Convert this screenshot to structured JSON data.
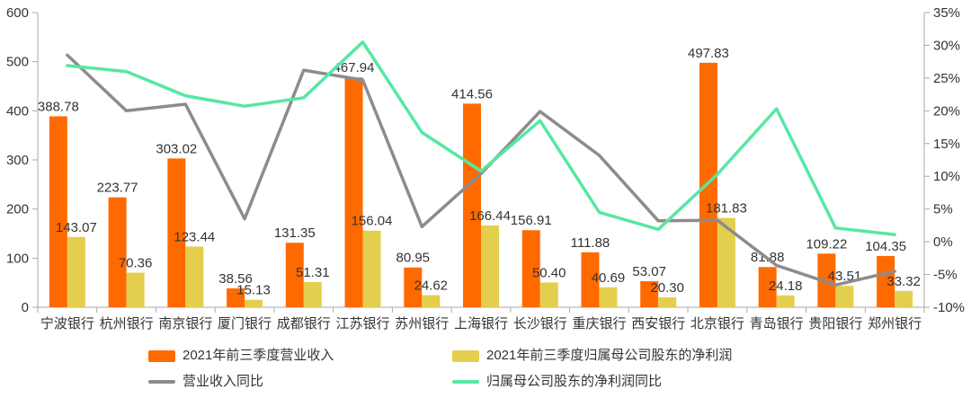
{
  "chart_data": {
    "type": "bar+line",
    "title": "",
    "xlabel": "",
    "ylabel_left": "",
    "ylabel_right": "",
    "grid": false,
    "legend_position": "bottom",
    "categories": [
      "宁波银行",
      "杭州银行",
      "南京银行",
      "厦门银行",
      "成都银行",
      "江苏银行",
      "苏州银行",
      "上海银行",
      "长沙银行",
      "重庆银行",
      "西安银行",
      "北京银行",
      "青岛银行",
      "贵阳银行",
      "郑州银行"
    ],
    "series": [
      {
        "name": "2021年前三季度营业收入",
        "type": "bar",
        "axis": "left",
        "color": "#FF6A00",
        "values": [
          "388.78",
          "223.77",
          "303.02",
          "38.56",
          "131.35",
          "467.94",
          "80.95",
          "414.56",
          "156.91",
          "111.88",
          "53.07",
          "497.83",
          "81.88",
          "109.22",
          "104.35"
        ]
      },
      {
        "name": "2021年前三季度归属母公司股东的净利润",
        "type": "bar",
        "axis": "left",
        "color": "#E4CE4E",
        "values": [
          "143.07",
          "70.36",
          "123.44",
          "15.13",
          "51.31",
          "156.04",
          "24.62",
          "166.44",
          "50.40",
          "40.69",
          "20.30",
          "181.83",
          "24.18",
          "43.51",
          "33.32"
        ]
      },
      {
        "name": "营业收入同比",
        "type": "line",
        "axis": "right",
        "color": "#8C8C8C",
        "values": [
          28.5,
          20.0,
          21.0,
          3.5,
          26.2,
          24.7,
          2.3,
          10.4,
          19.9,
          13.2,
          3.2,
          3.3,
          -3.6,
          -6.6,
          -4.5
        ]
      },
      {
        "name": "归属母公司股东的净利润同比",
        "type": "line",
        "axis": "right",
        "color": "#55E8A2",
        "values": [
          26.9,
          26.0,
          22.3,
          20.7,
          22.0,
          30.5,
          16.7,
          10.8,
          18.5,
          4.5,
          1.9,
          10.3,
          20.3,
          2.1,
          1.1
        ]
      }
    ],
    "left_axis": {
      "min": 0,
      "max": 600,
      "ticks": [
        600,
        500,
        400,
        300,
        200,
        100,
        0
      ]
    },
    "right_axis": {
      "min": -10,
      "max": 35,
      "tick_values": [
        35,
        30,
        25,
        20,
        15,
        10,
        5,
        0,
        -5,
        -10
      ],
      "tick_labels": [
        "35%",
        "30%",
        "25%",
        "20%",
        "15%",
        "10%",
        "5%",
        "0%",
        "-5%",
        "-10%"
      ]
    },
    "colors": {
      "axis": "#AAAAAA",
      "text": "#333333"
    }
  }
}
